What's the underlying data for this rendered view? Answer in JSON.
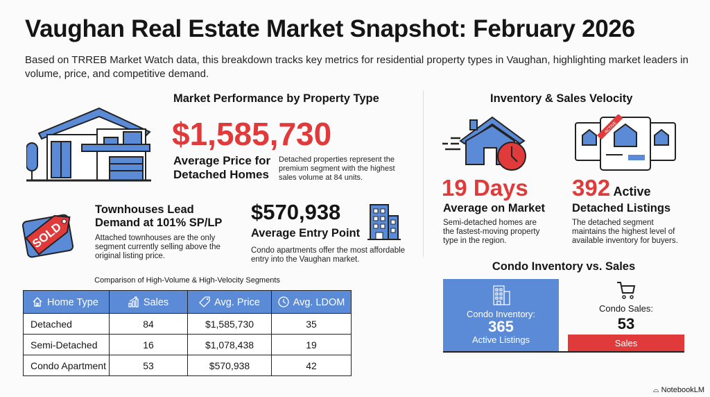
{
  "title": "Vaughan Real Estate Market Snapshot: February 2026",
  "subtitle": "Based on TRREB Market Watch data, this breakdown tracks key metrics for residential property types in Vaughan, highlighting market leaders in volume, price, and competitive demand.",
  "left": {
    "heading": "Market Performance by Property Type",
    "detached_price": "$1,585,730",
    "detached_label": "Average Price for Detached Homes",
    "detached_desc": "Detached properties represent the premium segment with the highest sales volume at 84 units.",
    "sold_tag": "SOLD",
    "townhouse_title": "Townhouses Lead Demand at 101% SP/LP",
    "townhouse_desc": "Attached townhouses are the only segment currently selling above the original listing price.",
    "condo_price": "$570,938",
    "condo_label": "Average Entry Point",
    "condo_desc": "Condo apartments offer the most affordable entry into the Vaughan market."
  },
  "table": {
    "caption": "Comparison of High-Volume & High-Velocity Segments",
    "headers": [
      "Home Type",
      "Sales",
      "Avg. Price",
      "Avg. LDOM"
    ],
    "header_icons": [
      "home-icon",
      "bar-chart-icon",
      "price-tag-icon",
      "clock-icon"
    ],
    "rows": [
      [
        "Detached",
        "84",
        "$1,585,730",
        "35"
      ],
      [
        "Semi-Detached",
        "16",
        "$1,078,438",
        "19"
      ],
      [
        "Condo Apartment",
        "53",
        "$570,938",
        "42"
      ]
    ]
  },
  "right": {
    "heading": "Inventory & Sales Velocity",
    "days_value": "19 Days",
    "days_label": "Average on Market",
    "days_desc": "Semi-detached homes are the fastest-moving property type in the region.",
    "listings_value": "392",
    "listings_active": "Active",
    "listings_label": "Detached Listings",
    "listings_desc": "The detached segment maintains the highest level of available inventory for buyers.",
    "active_badge": "ACTIVE",
    "condo_heading": "Condo Inventory vs. Sales",
    "inventory_label": "Condo Inventory:",
    "inventory_value": "365",
    "inventory_sub": "Active Listings",
    "sales_label": "Condo Sales:",
    "sales_value": "53",
    "sales_bar": "Sales"
  },
  "colors": {
    "blue": "#5b8bd6",
    "red": "#e03a3a",
    "text": "#151515"
  },
  "branding": "NotebookLM"
}
